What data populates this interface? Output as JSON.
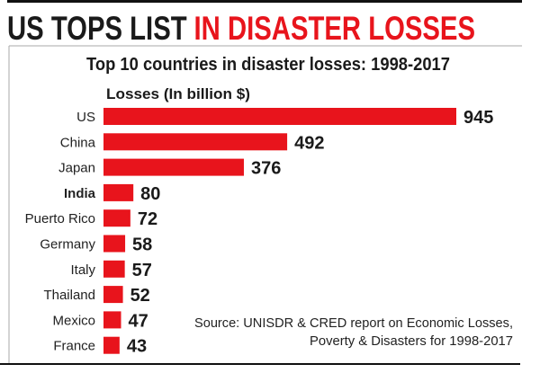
{
  "headline": {
    "part1": "US TOPS LIST",
    "part2": "IN DISASTER LOSSES"
  },
  "colors": {
    "bar": "#e8141c",
    "headline_accent": "#e8141c",
    "text": "#1a1a1a"
  },
  "chart_data": {
    "type": "bar",
    "orientation": "horizontal",
    "title": "Top 10 countries in disaster losses: 1998-2017",
    "xlabel": "Losses (In billion $)",
    "categories": [
      "US",
      "China",
      "Japan",
      "India",
      "Puerto Rico",
      "Germany",
      "Italy",
      "Thailand",
      "Mexico",
      "France"
    ],
    "values": [
      945,
      492,
      376,
      80,
      72,
      58,
      57,
      52,
      47,
      43
    ],
    "highlight": "India",
    "xlim": [
      0,
      945
    ],
    "grid": false,
    "data_labels": true
  },
  "source": {
    "line1": "Source: UNISDR & CRED report on Economic Losses,",
    "line2": "Poverty & Disasters for 1998-2017"
  }
}
